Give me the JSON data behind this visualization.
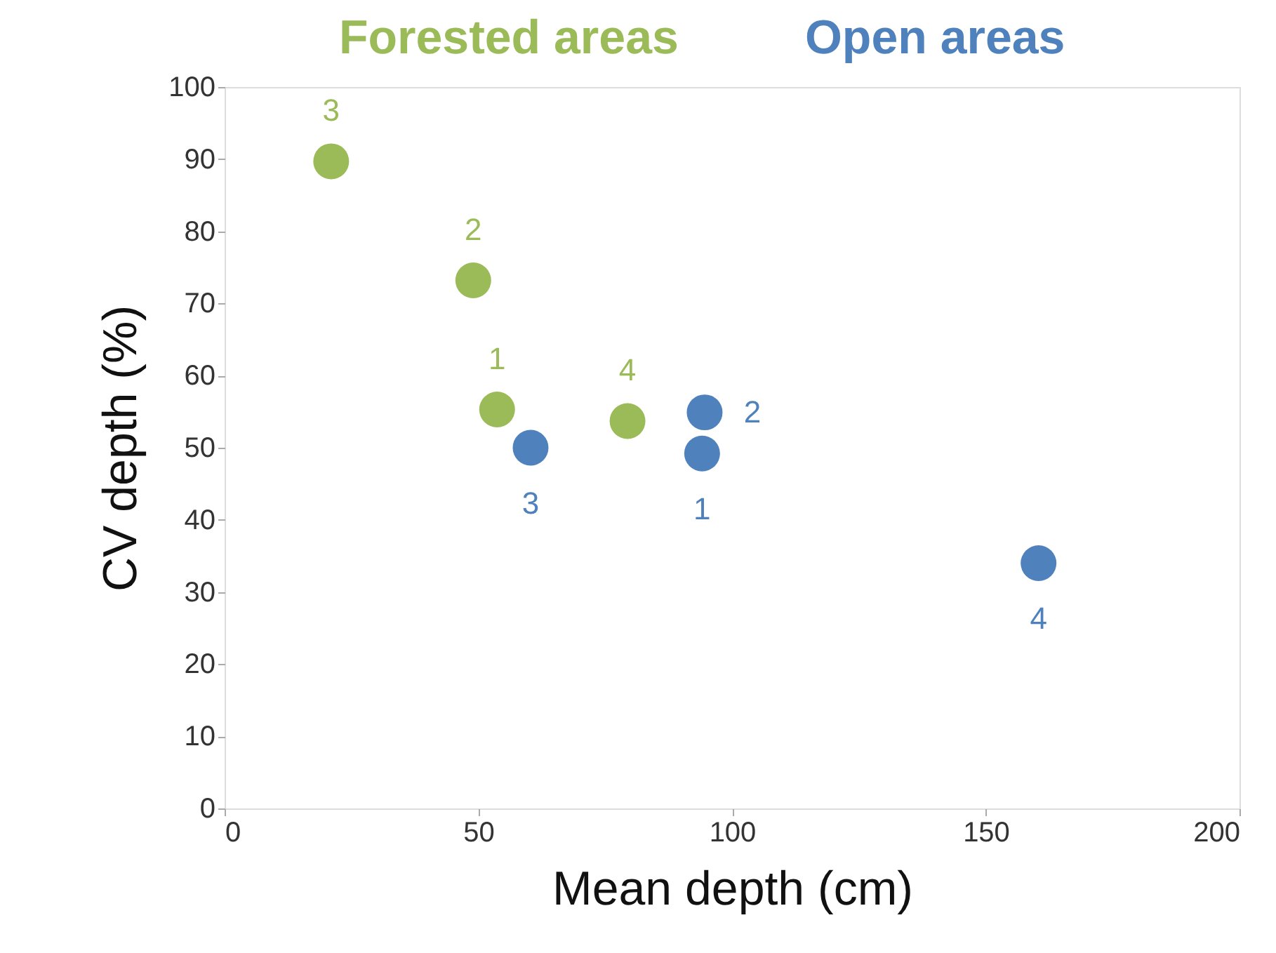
{
  "chart_data": {
    "type": "scatter",
    "xlabel": "Mean depth (cm)",
    "ylabel": "CV depth (%)",
    "series": [
      {
        "name": "Forested areas",
        "color": "#9bbb59",
        "x": [
          53.7,
          49.0,
          21.0,
          79.4
        ],
        "values": [
          55.3,
          73.2,
          89.7,
          53.7
        ]
      },
      {
        "name": "Open areas",
        "color": "#4f81bd",
        "x": [
          94.1,
          94.6,
          60.3,
          160.4
        ],
        "values": [
          49.2,
          54.9,
          50.0,
          34.0
        ]
      }
    ],
    "annotations": [
      {
        "text": "1",
        "x": 53.7,
        "y": 55.3
      },
      {
        "text": "2",
        "x": 49.0,
        "y": 73.2
      },
      {
        "text": "3",
        "x": 21.0,
        "y": 89.7
      },
      {
        "text": "4",
        "x": 79.4,
        "y": 53.7
      },
      {
        "text": "1",
        "x": 94.1,
        "y": 49.2
      },
      {
        "text": "2",
        "x": 94.6,
        "y": 54.9
      },
      {
        "text": "3",
        "x": 60.3,
        "y": 50.0
      },
      {
        "text": "4",
        "x": 160.4,
        "y": 34.0
      }
    ],
    "xlim": [
      0,
      200
    ],
    "xticks": [
      0,
      50,
      100,
      150,
      200
    ],
    "ylim": [
      0,
      100
    ],
    "yticks": [
      0,
      10,
      20,
      30,
      40,
      50,
      60,
      70,
      80,
      90,
      100
    ],
    "grid": false,
    "legend": "top",
    "marker": "circle"
  }
}
